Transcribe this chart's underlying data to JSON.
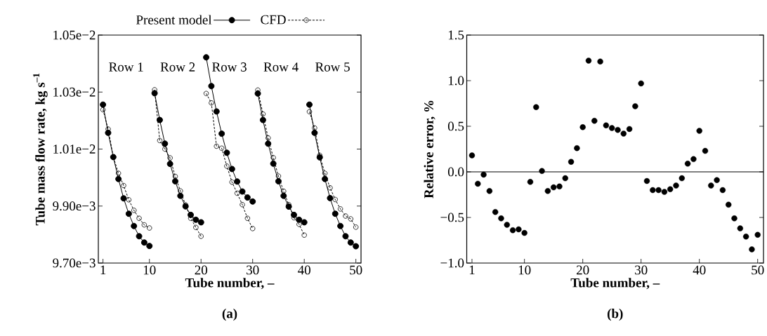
{
  "chart_data": [
    {
      "type": "line",
      "title": "(a)",
      "xlabel": "Tube number, –",
      "ylabel": "Tube mass flow rate, kg s$^{–1}$",
      "annotations": [
        "Row 1",
        "Row 2",
        "Row 3",
        "Row 4",
        "Row 5"
      ],
      "legend": "top",
      "xlim": [
        0.1,
        51
      ],
      "xticks": [
        1,
        10,
        20,
        30,
        40,
        50
      ],
      "ylim": [
        0.0097,
        0.0105
      ],
      "yticks": [
        {
          "value": 0.0097,
          "label": "9.70e−3"
        },
        {
          "value": 0.0099,
          "label": "9.90e−3"
        },
        {
          "value": 0.0101,
          "label": "1.01e−2"
        },
        {
          "value": 0.0103,
          "label": "1.03e−2"
        },
        {
          "value": 0.0105,
          "label": "1.05e−2"
        }
      ],
      "series": [
        {
          "name": "Present model",
          "color": "#000000",
          "line_style": "solid",
          "marker": "circle",
          "x": [
            1,
            2,
            3,
            4,
            5,
            6,
            7,
            8,
            9,
            10
          ],
          "values": [
            0.010256,
            0.010157,
            0.010072,
            0.009995,
            0.009927,
            0.009873,
            0.00983,
            0.009794,
            0.009772,
            0.00976
          ]
        },
        {
          "name": "CFD",
          "color": "#000000",
          "line_style": "dashed",
          "marker": "circle",
          "x": [
            1,
            2,
            3,
            4,
            5,
            6,
            7,
            8,
            9,
            10
          ],
          "values": [
            0.010238,
            0.01017,
            0.010072,
            0.010015,
            0.009972,
            0.009922,
            0.009885,
            0.009857,
            0.009834,
            0.009823
          ]
        },
        {
          "color": "#000000",
          "line_style": "solid",
          "marker": "circle",
          "x": [
            11,
            12,
            13,
            14,
            15,
            16,
            17,
            18,
            19,
            20
          ],
          "values": [
            0.010296,
            0.010202,
            0.010119,
            0.010048,
            0.009987,
            0.009936,
            0.009899,
            0.009869,
            0.009852,
            0.009843
          ]
        },
        {
          "color": "#000000",
          "line_style": "dashed",
          "marker": "circle",
          "x": [
            11,
            12,
            13,
            14,
            15,
            16,
            17,
            18,
            19,
            20
          ],
          "values": [
            0.010308,
            0.01013,
            0.0101,
            0.010069,
            0.010004,
            0.009953,
            0.009904,
            0.009857,
            0.009825,
            0.009794
          ]
        },
        {
          "color": "#000000",
          "line_style": "solid",
          "marker": "circle",
          "x": [
            21,
            22,
            23,
            24,
            25,
            26,
            27,
            28,
            29,
            30
          ],
          "values": [
            0.010422,
            0.010321,
            0.010232,
            0.010154,
            0.010087,
            0.01003,
            0.009986,
            0.009951,
            0.00993,
            0.009916
          ]
        },
        {
          "color": "#000000",
          "line_style": "dashed",
          "marker": "circle",
          "x": [
            21,
            22,
            23,
            24,
            25,
            26,
            27,
            28,
            29,
            30
          ],
          "values": [
            0.010295,
            0.010262,
            0.01011,
            0.010103,
            0.01004,
            0.009984,
            0.009945,
            0.009905,
            0.009857,
            0.009821
          ]
        },
        {
          "color": "#000000",
          "line_style": "solid",
          "marker": "circle",
          "x": [
            31,
            32,
            33,
            34,
            35,
            36,
            37,
            38,
            39,
            40
          ],
          "values": [
            0.010295,
            0.010202,
            0.010119,
            0.010049,
            0.009987,
            0.009936,
            0.009898,
            0.009869,
            0.009852,
            0.009843
          ]
        },
        {
          "color": "#000000",
          "line_style": "dashed",
          "marker": "circle",
          "x": [
            31,
            32,
            33,
            34,
            35,
            36,
            37,
            38,
            39,
            40
          ],
          "values": [
            0.010307,
            0.010223,
            0.010139,
            0.01007,
            0.010005,
            0.009952,
            0.009905,
            0.009859,
            0.009836,
            0.009798
          ]
        },
        {
          "color": "#000000",
          "line_style": "solid",
          "marker": "circle",
          "x": [
            41,
            42,
            43,
            44,
            45,
            46,
            47,
            48,
            49,
            50
          ],
          "values": [
            0.010256,
            0.010157,
            0.010071,
            0.009995,
            0.009928,
            0.009873,
            0.00983,
            0.009794,
            0.009772,
            0.009759
          ]
        },
        {
          "color": "#000000",
          "line_style": "dashed",
          "marker": "circle",
          "x": [
            41,
            42,
            43,
            44,
            45,
            46,
            47,
            48,
            49,
            50
          ],
          "values": [
            0.010231,
            0.010174,
            0.010078,
            0.010015,
            0.009964,
            0.009923,
            0.00989,
            0.009865,
            0.009855,
            0.009826
          ]
        }
      ]
    },
    {
      "type": "scatter",
      "title": "(b)",
      "xlabel": "Tube number, –",
      "ylabel": "Relative error, %",
      "marker": "circle",
      "xlim": [
        0.1,
        51
      ],
      "xticks": [
        1,
        10,
        20,
        30,
        40,
        50
      ],
      "ylim": [
        -1.0,
        1.5
      ],
      "yticks": [
        {
          "value": -1.0,
          "label": "−1.0"
        },
        {
          "value": -0.5,
          "label": "−0.5"
        },
        {
          "value": 0.0,
          "label": "0.0"
        },
        {
          "value": 0.5,
          "label": "0.5"
        },
        {
          "value": 1.0,
          "label": "1.0"
        },
        {
          "value": 1.5,
          "label": "1.5"
        }
      ],
      "ref_lines": [
        {
          "axis": "y",
          "value": 0,
          "color": "#000000"
        }
      ],
      "x": [
        1,
        2,
        3,
        4,
        5,
        6,
        7,
        8,
        9,
        10,
        11,
        12,
        13,
        14,
        15,
        16,
        17,
        18,
        19,
        20,
        21,
        22,
        23,
        24,
        25,
        26,
        27,
        28,
        29,
        30,
        31,
        32,
        33,
        34,
        35,
        36,
        37,
        38,
        39,
        40,
        41,
        42,
        43,
        44,
        45,
        46,
        47,
        48,
        49,
        50
      ],
      "series": [
        {
          "color": "#000000",
          "values": [
            0.18,
            -0.13,
            -0.03,
            -0.21,
            -0.44,
            -0.51,
            -0.58,
            -0.64,
            -0.63,
            -0.67,
            -0.11,
            0.71,
            0.01,
            -0.21,
            -0.17,
            -0.16,
            -0.07,
            0.11,
            0.26,
            0.49,
            1.22,
            0.56,
            1.21,
            0.51,
            0.48,
            0.46,
            0.42,
            0.47,
            0.72,
            0.97,
            -0.1,
            -0.2,
            -0.2,
            -0.22,
            -0.19,
            -0.15,
            -0.07,
            0.09,
            0.14,
            0.45,
            0.23,
            -0.15,
            -0.09,
            -0.2,
            -0.36,
            -0.51,
            -0.62,
            -0.71,
            -0.85,
            -0.69
          ]
        }
      ]
    }
  ]
}
